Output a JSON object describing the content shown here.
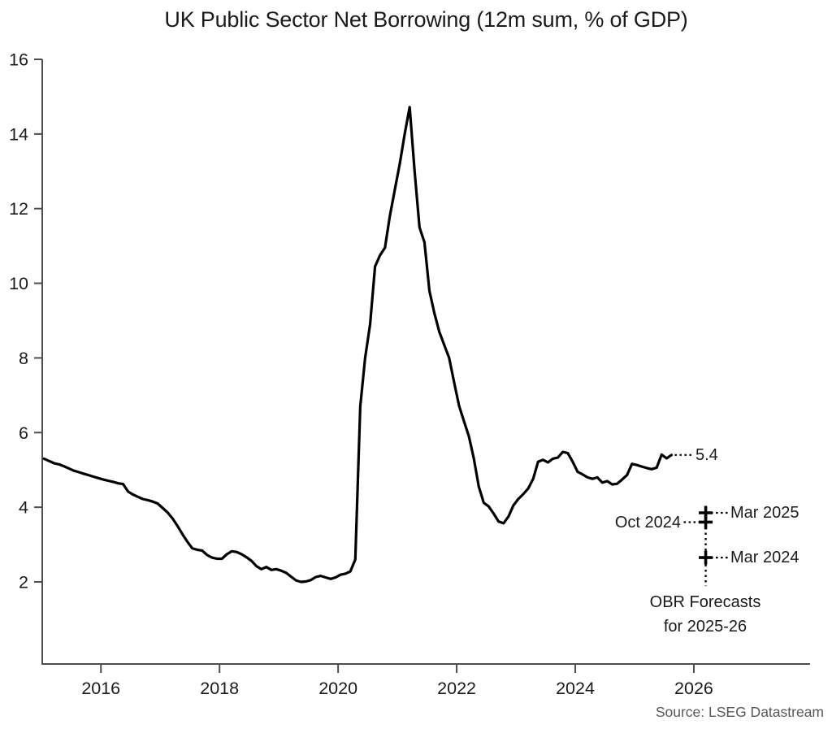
{
  "title": "UK Public Sector Net Borrowing (12m sum, % of GDP)",
  "source": "Source: LSEG Datastream",
  "colors": {
    "line": "#000000",
    "axis": "#4d4d4d",
    "text": "#1a1a1a",
    "muted": "#575757"
  },
  "chart_data": {
    "type": "line",
    "title": "UK Public Sector Net Borrowing (12m sum, % of GDP)",
    "xlabel": "",
    "ylabel": "",
    "xlim": [
      2015.01,
      2027.96
    ],
    "ylim": [
      -0.2,
      16
    ],
    "x_ticks": [
      2016,
      2018,
      2020,
      2022,
      2024,
      2026
    ],
    "y_ticks": [
      2,
      4,
      6,
      8,
      10,
      12,
      14,
      16
    ],
    "grid": false,
    "legend": "none",
    "series": [
      {
        "name": "UK public sector net borrowing, 12-month sum, % of GDP",
        "x_start": 2015.04,
        "x_step": 0.08333,
        "values": [
          5.3,
          5.24,
          5.18,
          5.15,
          5.1,
          5.04,
          4.98,
          4.94,
          4.9,
          4.86,
          4.82,
          4.78,
          4.74,
          4.71,
          4.68,
          4.64,
          4.62,
          4.42,
          4.34,
          4.28,
          4.22,
          4.19,
          4.15,
          4.1,
          3.98,
          3.86,
          3.7,
          3.5,
          3.28,
          3.08,
          2.9,
          2.86,
          2.84,
          2.72,
          2.65,
          2.62,
          2.62,
          2.74,
          2.82,
          2.8,
          2.74,
          2.66,
          2.56,
          2.42,
          2.34,
          2.4,
          2.32,
          2.34,
          2.3,
          2.24,
          2.14,
          2.04,
          2.0,
          2.01,
          2.05,
          2.13,
          2.16,
          2.12,
          2.08,
          2.12,
          2.19,
          2.22,
          2.28,
          2.6,
          6.7,
          8.0,
          8.9,
          10.45,
          10.75,
          10.95,
          11.8,
          12.5,
          13.2,
          14.0,
          14.72,
          13.0,
          11.5,
          11.1,
          9.8,
          9.2,
          8.7,
          8.35,
          8.0,
          7.35,
          6.72,
          6.3,
          5.9,
          5.3,
          4.55,
          4.12,
          4.02,
          3.83,
          3.62,
          3.57,
          3.75,
          4.05,
          4.22,
          4.35,
          4.5,
          4.76,
          5.22,
          5.27,
          5.2,
          5.3,
          5.33,
          5.48,
          5.45,
          5.22,
          4.95,
          4.88,
          4.8,
          4.76,
          4.8,
          4.66,
          4.7,
          4.61,
          4.63,
          4.74,
          4.86,
          5.16,
          5.13,
          5.09,
          5.05,
          5.02,
          5.06,
          5.41,
          5.31,
          5.4
        ]
      }
    ],
    "end_label": "5.4",
    "end_value": 5.4,
    "forecasts": [
      {
        "label": "Mar 2025",
        "x": 2026.2,
        "value": 3.85,
        "side": "right"
      },
      {
        "label": "Oct 2024",
        "x": 2026.2,
        "value": 3.6,
        "side": "left"
      },
      {
        "label": "Mar 2024",
        "x": 2026.2,
        "value": 2.65,
        "side": "right"
      }
    ],
    "forecast_note": [
      "OBR Forecasts",
      "for 2025-26"
    ]
  }
}
